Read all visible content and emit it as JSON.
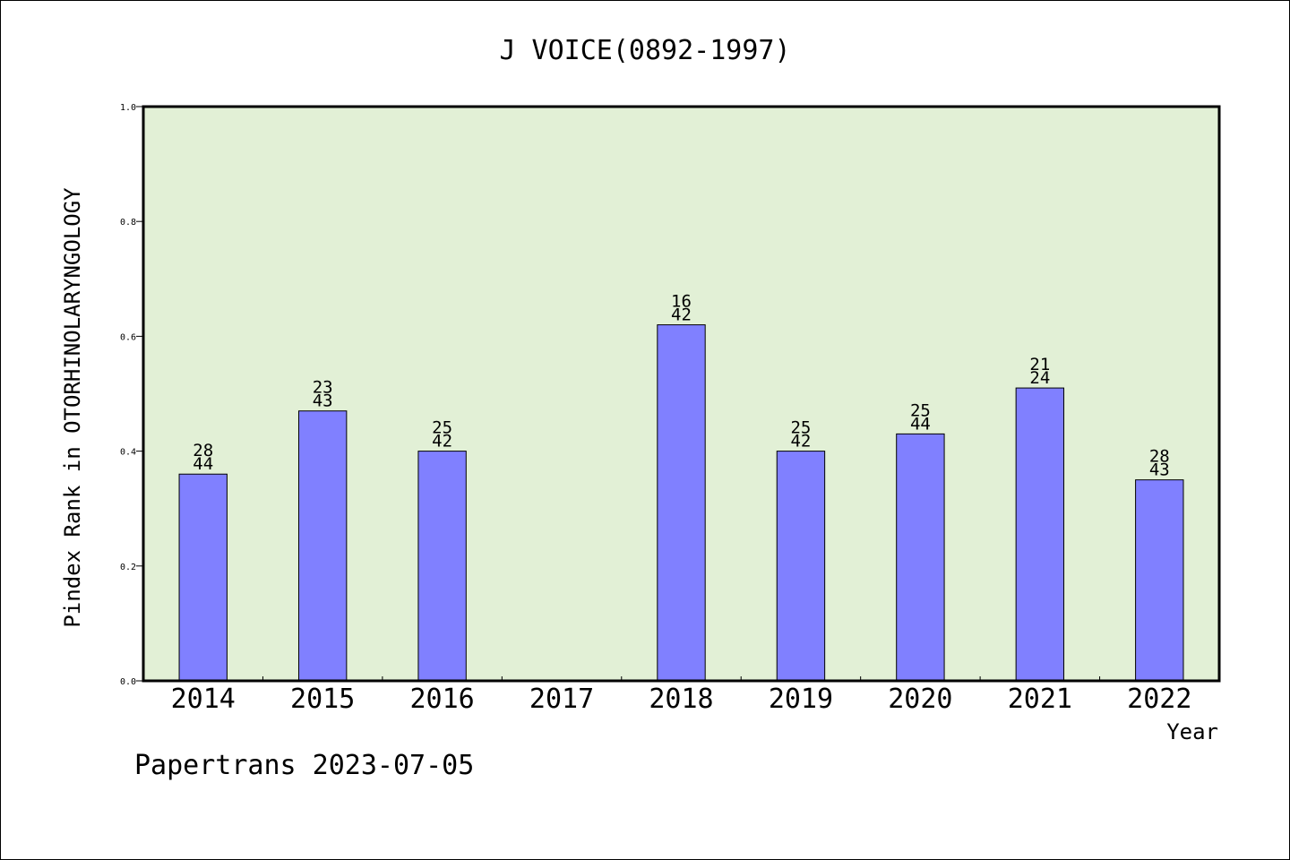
{
  "chart_data": {
    "type": "bar",
    "title": "J VOICE(0892-1997)",
    "xlabel": "Year",
    "ylabel": "Pindex Rank in OTORHINOLARYNGOLOGY",
    "categories": [
      "2014",
      "2015",
      "2016",
      "2017",
      "2018",
      "2019",
      "2020",
      "2021",
      "2022"
    ],
    "values": [
      0.36,
      0.47,
      0.4,
      null,
      0.62,
      0.4,
      0.43,
      0.51,
      0.35
    ],
    "rank_labels": [
      "28",
      "23",
      "25",
      "",
      "16",
      "25",
      "25",
      "21",
      "28"
    ],
    "total_labels": [
      "44",
      "43",
      "42",
      "",
      "42",
      "42",
      "44",
      "24",
      "43"
    ],
    "ylim": [
      0,
      1.0
    ],
    "yticks": [
      "0.0",
      "0.2",
      "0.4",
      "0.6",
      "0.8",
      "1.0"
    ],
    "grid": false,
    "legend": "none",
    "colors": {
      "plot_background": "#e2f0d6",
      "bar_fill": "#8080ff",
      "bar_stroke": "#000000"
    }
  },
  "footer": {
    "credit": "Papertrans 2023-07-05"
  }
}
